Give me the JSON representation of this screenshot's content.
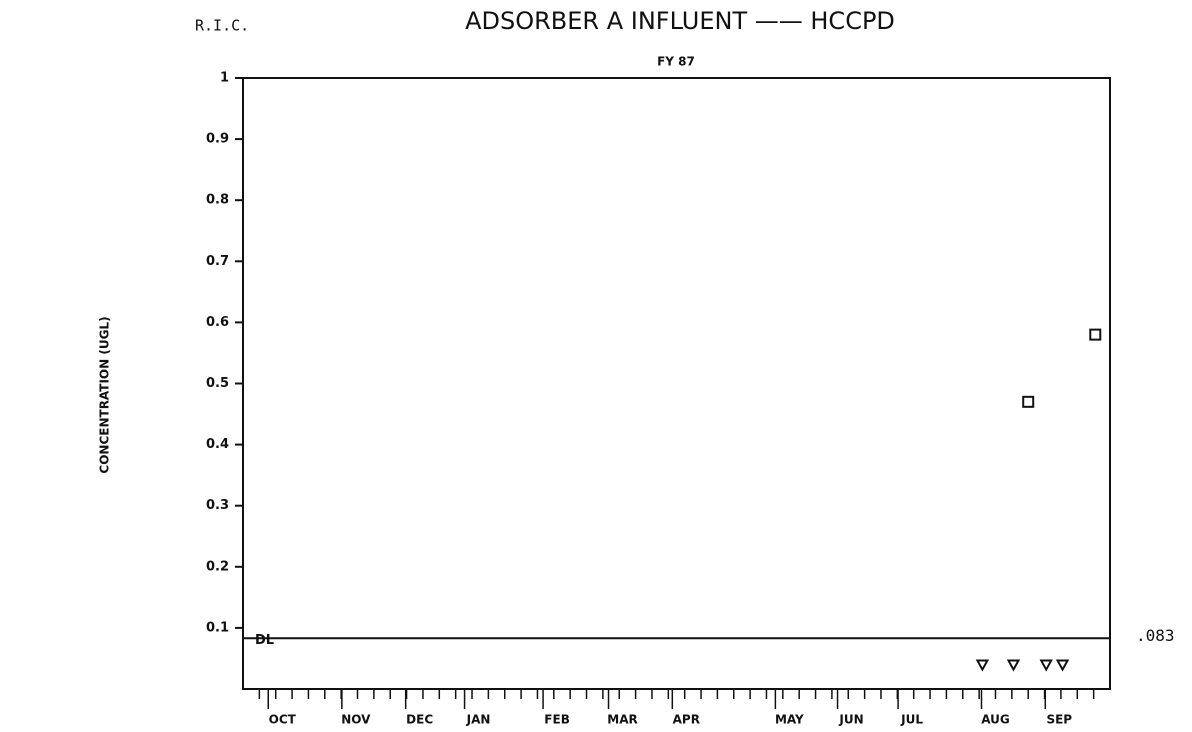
{
  "chart_data": {
    "type": "scatter",
    "lab": "R.I.C.",
    "title": "ADSORBER A INFLUENT —— HCCPD",
    "subtitle": "FY 87",
    "y_label": "CONCENTRATION (UGL)",
    "xlim": [
      -1,
      52
    ],
    "ylim": [
      0,
      1
    ],
    "yticks": [
      0.1,
      0.2,
      0.3,
      0.4,
      0.5,
      0.6,
      0.7,
      0.8,
      0.9,
      1
    ],
    "xticks": [
      {
        "value": 1.4,
        "label": "OCT"
      },
      {
        "value": 5.9,
        "label": "NOV"
      },
      {
        "value": 9.8,
        "label": "DEC"
      },
      {
        "value": 13.4,
        "label": "JAN"
      },
      {
        "value": 18.2,
        "label": "FEB"
      },
      {
        "value": 22.2,
        "label": "MAR"
      },
      {
        "value": 26.1,
        "label": "APR"
      },
      {
        "value": 32.4,
        "label": "MAY"
      },
      {
        "value": 36.2,
        "label": "JUN"
      },
      {
        "value": 39.9,
        "label": "JUL"
      },
      {
        "value": 45.0,
        "label": "AUG"
      },
      {
        "value": 48.9,
        "label": "SEP"
      }
    ],
    "xminorticks": [
      0,
      1,
      2,
      3,
      4,
      5,
      6,
      7,
      8,
      9,
      10,
      11,
      12,
      13,
      14,
      15,
      16,
      17,
      18,
      19,
      20,
      21,
      22,
      23,
      24,
      25,
      26,
      27,
      28,
      29,
      30,
      31,
      32,
      33,
      34,
      35,
      36,
      37,
      38,
      39,
      40,
      41,
      42,
      43,
      44,
      45,
      46,
      47,
      48,
      49,
      50,
      51
    ],
    "detection_limit": {
      "value": 0.083,
      "label": ".083"
    },
    "detection_limit_label": "DL",
    "color": "#111111",
    "series": [
      {
        "marker": "square",
        "x": [
          47.0,
          51.1
        ],
        "values": [
          0.47,
          0.58
        ]
      },
      {
        "marker": "triangle",
        "x": [
          44.2,
          46.1,
          48.1,
          49.1
        ],
        "values": [
          0.04,
          0.04,
          0.04,
          0.04
        ]
      }
    ]
  }
}
